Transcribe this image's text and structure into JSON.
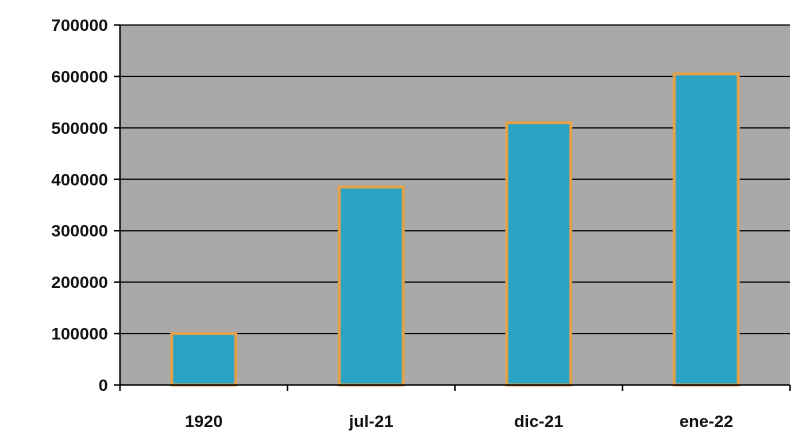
{
  "chart_data": {
    "type": "bar",
    "categories": [
      "1920",
      "jul-21",
      "dic-21",
      "ene-22"
    ],
    "values": [
      100000,
      385000,
      510000,
      605000
    ],
    "yticks": [
      0,
      100000,
      200000,
      300000,
      400000,
      500000,
      600000,
      700000
    ],
    "ylim": [
      0,
      700000
    ],
    "title": "",
    "xlabel": "",
    "ylabel": "",
    "grid": true,
    "legend": "none",
    "colors": {
      "plot_background": "#a9a9a9",
      "bar_fill": "#2aa3c4",
      "bar_outline": "#e2a24c",
      "gridline": "#000000"
    }
  }
}
